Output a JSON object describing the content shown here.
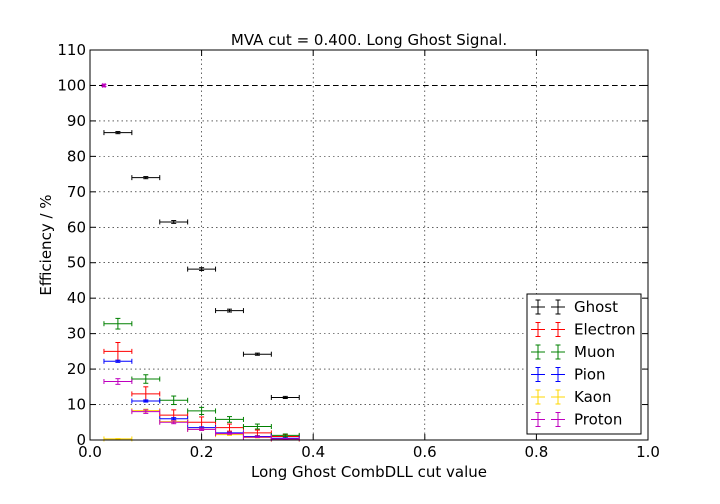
{
  "chart_data": {
    "type": "scatter",
    "title": "MVA cut = 0.400. Long Ghost Signal.",
    "xlabel": "Long Ghost CombDLL cut value",
    "ylabel": "Efficiency / %",
    "xlim": [
      0.0,
      1.0
    ],
    "ylim": [
      0,
      110
    ],
    "xticks": [
      "0.0",
      "0.2",
      "0.4",
      "0.6",
      "0.8",
      "1.0"
    ],
    "yticks": [
      "0",
      "10",
      "20",
      "30",
      "40",
      "50",
      "60",
      "70",
      "80",
      "90",
      "100",
      "110"
    ],
    "grid": true,
    "legend_position": "bottom-right",
    "reference_line": {
      "y": 100,
      "style": "dashed"
    },
    "x_bin_halfwidth": 0.025,
    "series": [
      {
        "name": "Ghost",
        "color": "#000000",
        "points": [
          [
            0.05,
            86.7,
            0.3
          ],
          [
            0.1,
            74.0,
            0.3
          ],
          [
            0.15,
            61.5,
            0.4
          ],
          [
            0.2,
            48.2,
            0.4
          ],
          [
            0.25,
            36.5,
            0.4
          ],
          [
            0.3,
            24.2,
            0.3
          ],
          [
            0.35,
            12.0,
            0.3
          ]
        ]
      },
      {
        "name": "Electron",
        "color": "#ff0000",
        "points": [
          [
            0.05,
            25.0,
            2.5
          ],
          [
            0.1,
            13.0,
            2.0
          ],
          [
            0.15,
            7.0,
            1.5
          ],
          [
            0.2,
            5.0,
            1.5
          ],
          [
            0.25,
            3.5,
            1.0
          ],
          [
            0.3,
            2.0,
            0.8
          ],
          [
            0.35,
            1.0,
            0.5
          ]
        ]
      },
      {
        "name": "Muon",
        "color": "#008000",
        "points": [
          [
            0.05,
            32.8,
            1.5
          ],
          [
            0.1,
            17.2,
            1.2
          ],
          [
            0.15,
            11.2,
            1.2
          ],
          [
            0.2,
            8.2,
            1.0
          ],
          [
            0.25,
            5.8,
            0.8
          ],
          [
            0.3,
            3.8,
            0.7
          ],
          [
            0.35,
            1.3,
            0.4
          ]
        ]
      },
      {
        "name": "Pion",
        "color": "#0000ff",
        "points": [
          [
            0.05,
            22.2,
            0.3
          ],
          [
            0.1,
            11.0,
            0.3
          ],
          [
            0.15,
            6.0,
            0.3
          ],
          [
            0.2,
            3.5,
            0.2
          ],
          [
            0.25,
            2.0,
            0.2
          ],
          [
            0.3,
            1.0,
            0.1
          ],
          [
            0.35,
            0.5,
            0.1
          ]
        ]
      },
      {
        "name": "Kaon",
        "color": "#ffd700",
        "points": [
          [
            0.05,
            0.3,
            0.1
          ],
          [
            0.1,
            8.3,
            0.4
          ],
          [
            0.15,
            5.2,
            0.3
          ],
          [
            0.2,
            3.0,
            0.3
          ],
          [
            0.25,
            1.5,
            0.2
          ],
          [
            0.3,
            0.7,
            0.1
          ],
          [
            0.35,
            0.2,
            0.1
          ]
        ]
      },
      {
        "name": "Proton",
        "color": "#bf00bf",
        "points": [
          [
            0.025,
            100.0,
            0.3
          ],
          [
            0.05,
            16.5,
            0.8
          ],
          [
            0.1,
            8.0,
            0.5
          ],
          [
            0.15,
            5.0,
            0.4
          ],
          [
            0.2,
            3.0,
            0.3
          ],
          [
            0.25,
            1.8,
            0.2
          ],
          [
            0.3,
            0.8,
            0.1
          ],
          [
            0.35,
            0.3,
            0.1
          ]
        ]
      }
    ]
  }
}
